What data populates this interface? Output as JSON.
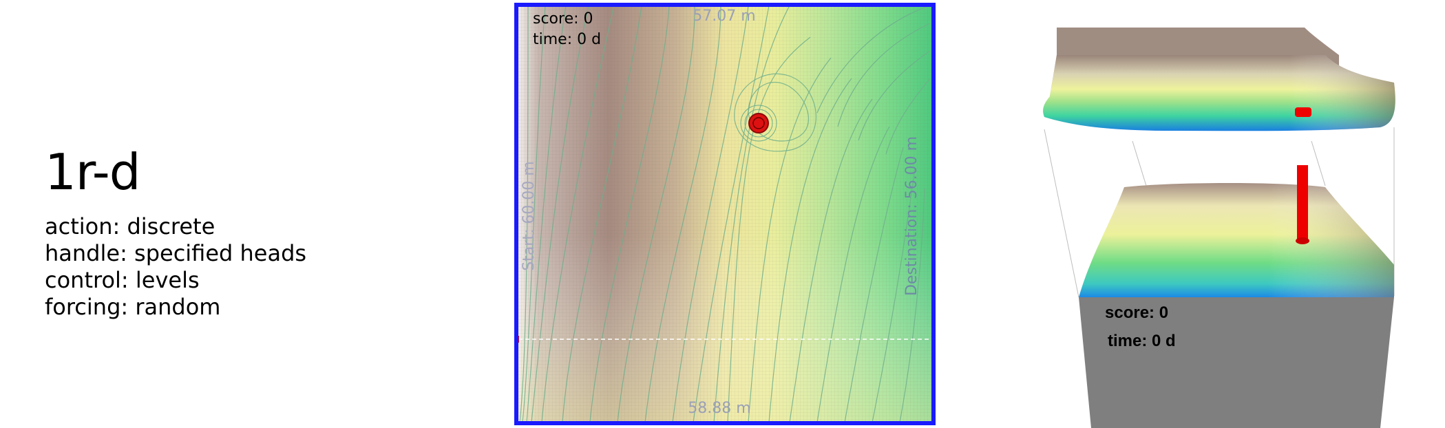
{
  "info": {
    "title": "1r-d",
    "action": "action: discrete",
    "handle": "handle: specified heads",
    "control": "control: levels",
    "forcing": "forcing: random"
  },
  "map2d": {
    "score_text": "score: 0",
    "time_text": "time: 0 d",
    "top_head": "57.07 m",
    "bottom_head": "58.88 m",
    "left_label": "Start:  60.00 m",
    "right_label": "Destination:  56.00 m",
    "colors": {
      "border": "#1a1aff",
      "well": "#dd1111",
      "agent_marker": "#dd1111"
    }
  },
  "view3d": {
    "score_text": "score: 0",
    "time_text": "time: 0 d",
    "colors": {
      "well": "#ee0000",
      "base": "#7f7f7f"
    }
  }
}
